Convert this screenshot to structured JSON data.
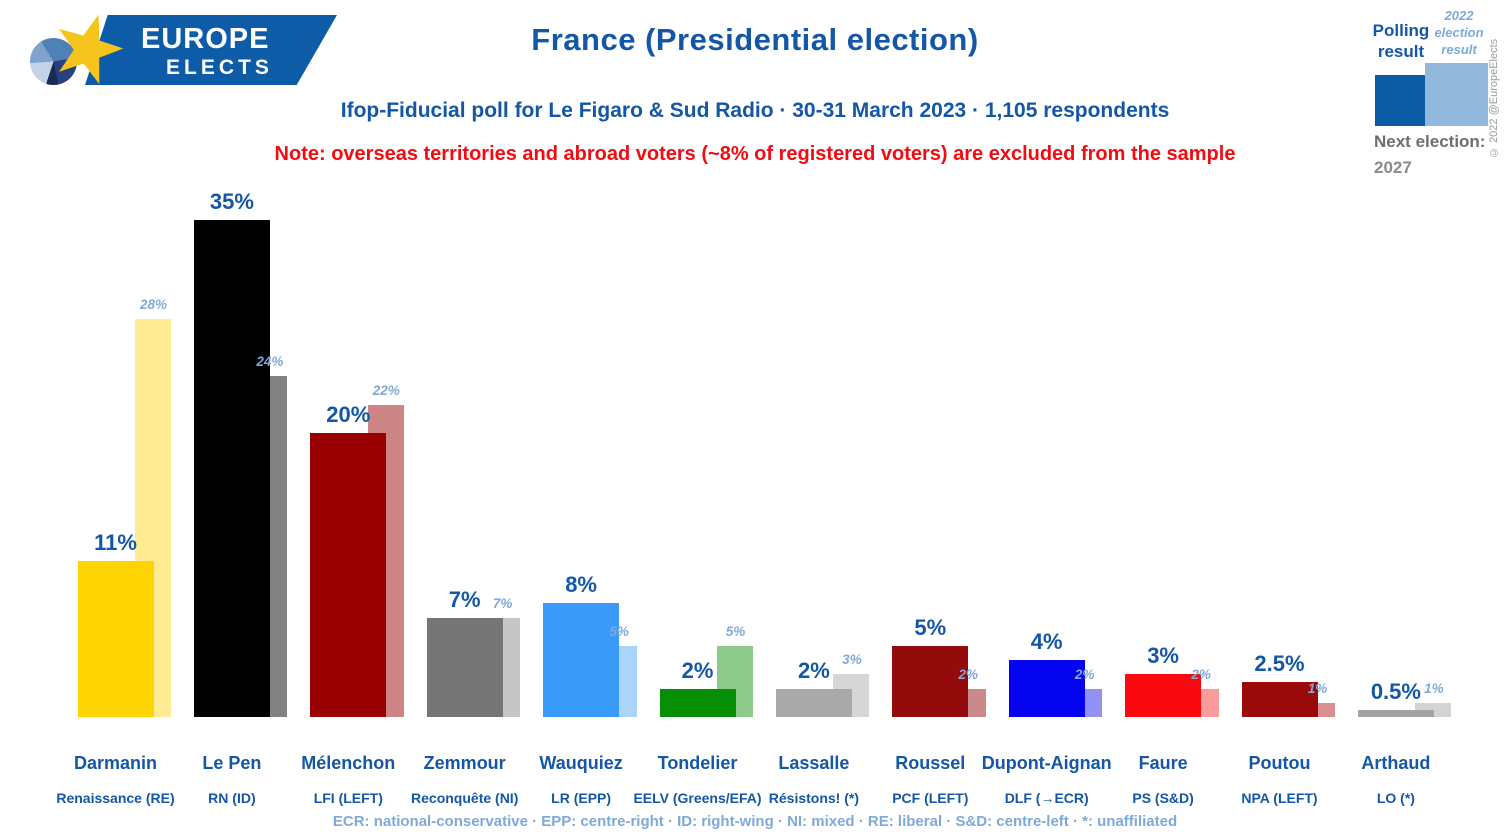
{
  "logo": {
    "line1": "EUROPE",
    "line2": "ELECTS"
  },
  "header": {
    "title": "France (Presidential election)",
    "subtitle": "Ifop-Fiducial poll for Le Figaro & Sud Radio · 30-31 March 2023 · 1,105 respondents",
    "note": "Note: overseas territories and abroad voters (~8% of registered voters) are excluded from the sample"
  },
  "legend": {
    "polling_label": "Polling\nresult",
    "election_label": "2022\nelection\nresult",
    "polling_color": "#0B5CA5",
    "election_color": "#92B8DC",
    "next_election_label": "Next election:",
    "next_election_year": "2027"
  },
  "copyright": "© 2022 @EuropeElects",
  "footnote": "ECR: national-conservative · EPP: centre-right · ID: right-wing · NI: mixed · RE: liberal · S&D: centre-left · *: unaffiliated",
  "chart_data": {
    "type": "bar",
    "title": "France (Presidential election)",
    "unit": "%",
    "ylim": [
      0,
      35
    ],
    "grid": false,
    "legend_position": "top-right",
    "categories": [
      "Darmanin",
      "Le Pen",
      "Mélenchon",
      "Zemmour",
      "Wauquiez",
      "Tondelier",
      "Lassalle",
      "Roussel",
      "Dupont-Aignan",
      "Faure",
      "Poutou",
      "Arthaud"
    ],
    "series": [
      {
        "name": "Polling result",
        "values": [
          11,
          35,
          20,
          7,
          8,
          2,
          2,
          5,
          4,
          3,
          2.5,
          0.5
        ]
      },
      {
        "name": "2022 election result",
        "values": [
          28,
          24,
          22,
          7,
          5,
          5,
          3,
          2,
          2,
          2,
          1,
          1
        ]
      }
    ],
    "candidates": [
      {
        "name": "Darmanin",
        "party": "Renaissance (RE)",
        "polling_label": "11%",
        "election_label": "28%",
        "color": "#FFD400",
        "election_color": "#FFEB94"
      },
      {
        "name": "Le Pen",
        "party": "RN (ID)",
        "polling_label": "35%",
        "election_label": "24%",
        "color": "#000000",
        "election_color": "#828282"
      },
      {
        "name": "Mélenchon",
        "party": "LFI (LEFT)",
        "polling_label": "20%",
        "election_label": "22%",
        "color": "#9B0000",
        "election_color": "#CC8485"
      },
      {
        "name": "Zemmour",
        "party": "Reconquête (NI)",
        "polling_label": "7%",
        "election_label": "7%",
        "color": "#757575",
        "election_color": "#C6C6C6"
      },
      {
        "name": "Wauquiez",
        "party": "LR (EPP)",
        "polling_label": "8%",
        "election_label": "5%",
        "color": "#3A9AF8",
        "election_color": "#ABD4FC"
      },
      {
        "name": "Tondelier",
        "party": "EELV (Greens/EFA)",
        "polling_label": "2%",
        "election_label": "5%",
        "color": "#068E06",
        "election_color": "#8CCB8C"
      },
      {
        "name": "Lassalle",
        "party": "Résistons! (*)",
        "polling_label": "2%",
        "election_label": "3%",
        "color": "#A9A9A9",
        "election_color": "#D6D6D6"
      },
      {
        "name": "Roussel",
        "party": "PCF (LEFT)",
        "polling_label": "5%",
        "election_label": "2%",
        "color": "#930B0B",
        "election_color": "#CA8A8A"
      },
      {
        "name": "Dupont-Aignan",
        "party": "DLF (→ECR)",
        "polling_label": "4%",
        "election_label": "2%",
        "color": "#0404F0",
        "election_color": "#9392F4"
      },
      {
        "name": "Faure",
        "party": "PS (S&D)",
        "polling_label": "3%",
        "election_label": "2%",
        "color": "#FA0A0F",
        "election_color": "#FB9B9B"
      },
      {
        "name": "Poutou",
        "party": "NPA (LEFT)",
        "polling_label": "2.5%",
        "election_label": "1%",
        "color": "#9A0A0A",
        "election_color": "#D98F8F"
      },
      {
        "name": "Arthaud",
        "party": "LO (*)",
        "polling_label": "0.5%",
        "election_label": "1%",
        "color": "#A3A3A3",
        "election_color": "#D4D4D4"
      }
    ]
  }
}
